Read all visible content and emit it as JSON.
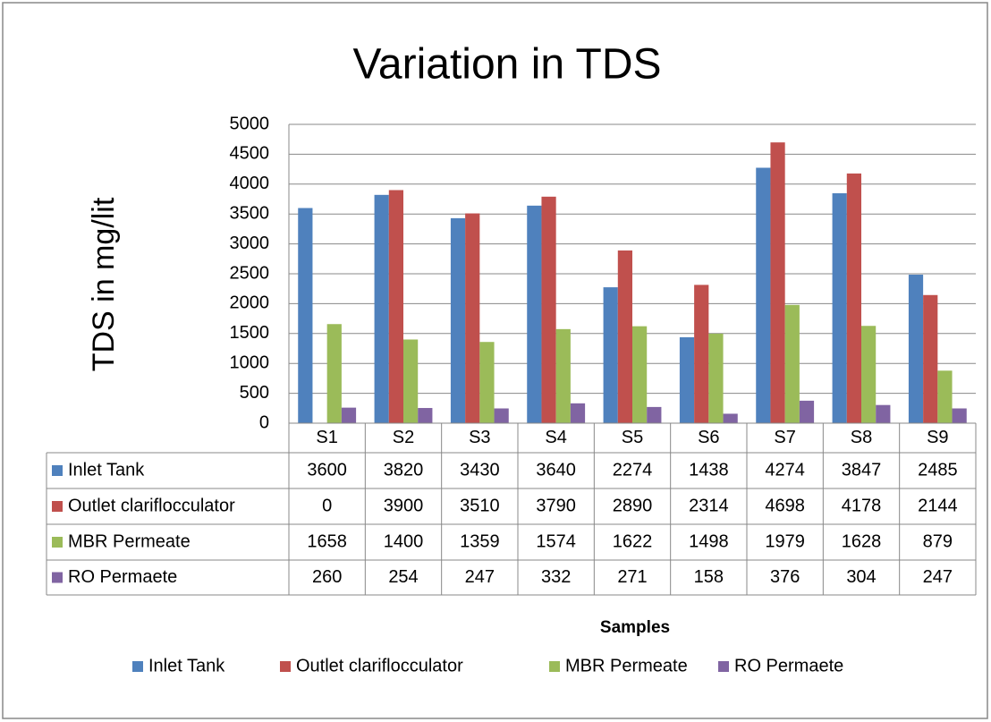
{
  "chart_data": {
    "type": "bar",
    "title": "Variation in TDS",
    "y_label": "TDS in mg/lit",
    "x_label": "Samples",
    "categories": [
      "S1",
      "S2",
      "S3",
      "S4",
      "S5",
      "S6",
      "S7",
      "S8",
      "S9"
    ],
    "series": [
      {
        "name": "Inlet Tank",
        "color": "#4f81bd",
        "values": [
          3600,
          3820,
          3430,
          3640,
          2274,
          1438,
          4274,
          3847,
          2485
        ]
      },
      {
        "name": "Outlet clariflocculator",
        "color": "#c0504d",
        "values": [
          0,
          3900,
          3510,
          3790,
          2890,
          2314,
          4698,
          4178,
          2144
        ]
      },
      {
        "name": "MBR Permeate",
        "color": "#9bbb59",
        "values": [
          1658,
          1400,
          1359,
          1574,
          1622,
          1498,
          1979,
          1628,
          879
        ]
      },
      {
        "name": "RO Permaete",
        "color": "#8064a2",
        "values": [
          260,
          254,
          247,
          332,
          271,
          158,
          376,
          304,
          247
        ]
      }
    ],
    "ylim": [
      0,
      5000
    ],
    "yticks": [
      0,
      500,
      1000,
      1500,
      2000,
      2500,
      3000,
      3500,
      4000,
      4500,
      5000
    ],
    "grid": true,
    "legend": "bottom"
  }
}
